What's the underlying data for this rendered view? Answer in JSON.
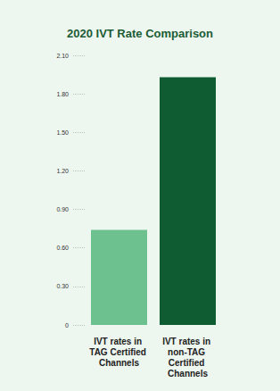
{
  "chart_data": {
    "type": "bar",
    "title": "2020 IVT Rate Comparison",
    "categories": [
      "IVT rates in TAG Certified Channels",
      "IVT rates in non-TAG Certified Channels"
    ],
    "values": [
      0.74,
      1.93
    ],
    "colors": [
      "#6cc18f",
      "#0f5c33"
    ],
    "ylim": [
      0,
      2.1
    ],
    "yticks": [
      0,
      {
        "value": 0.3,
        "label": "0.30"
      },
      {
        "value": 0.6,
        "label": "0.60"
      },
      {
        "value": 0.9,
        "label": "0.90"
      },
      {
        "value": 1.2,
        "label": "1.20"
      },
      {
        "value": 1.5,
        "label": "1.50"
      },
      {
        "value": 1.8,
        "label": "1.80"
      },
      {
        "value": 2.1,
        "label": "2.10"
      }
    ],
    "grid": false
  }
}
